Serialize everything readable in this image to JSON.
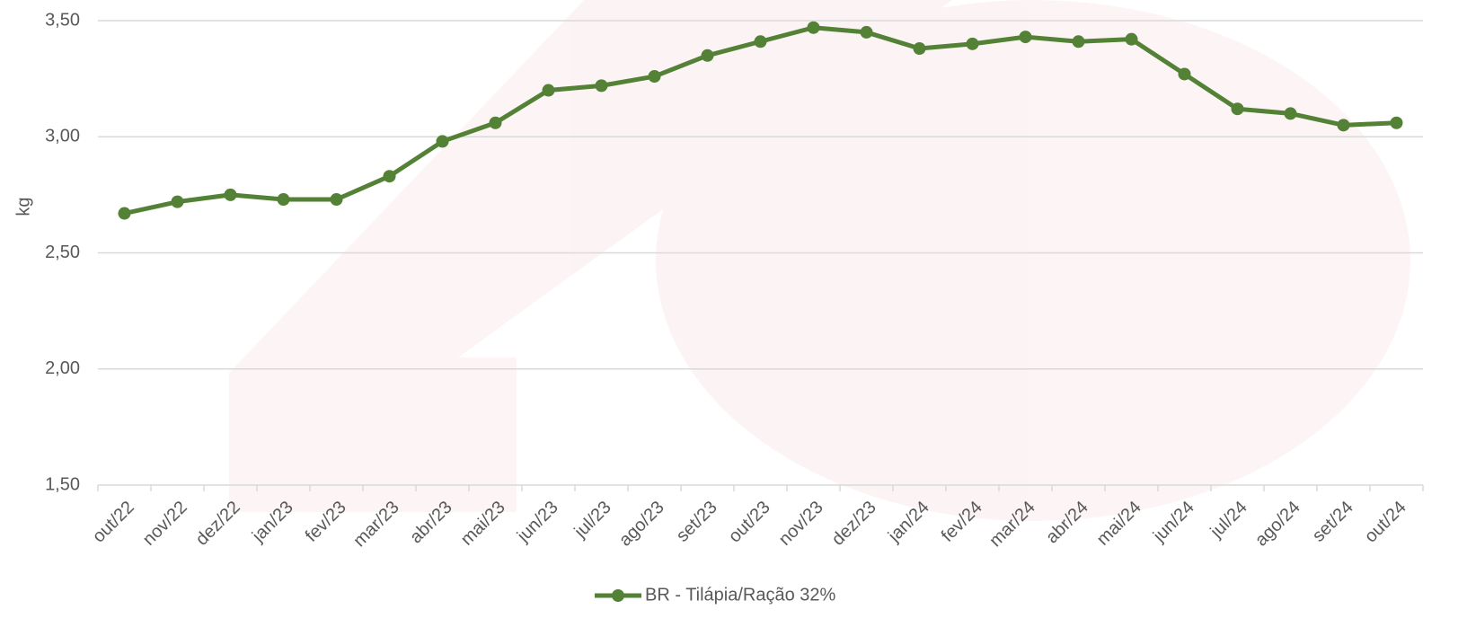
{
  "chart_data": {
    "type": "line",
    "y_label": "kg",
    "categories": [
      "out/22",
      "nov/22",
      "dez/22",
      "jan/23",
      "fev/23",
      "mar/23",
      "abr/23",
      "mai/23",
      "jun/23",
      "jul/23",
      "ago/23",
      "set/23",
      "out/23",
      "nov/23",
      "dez/23",
      "jan/24",
      "fev/24",
      "mar/24",
      "abr/24",
      "mai/24",
      "jun/24",
      "jul/24",
      "ago/24",
      "set/24",
      "out/24"
    ],
    "series": [
      {
        "name": "BR - Tilápia/Ração 32%",
        "color": "#538135",
        "values": [
          2.67,
          2.72,
          2.75,
          2.73,
          2.73,
          2.83,
          2.98,
          3.06,
          3.2,
          3.22,
          3.26,
          3.35,
          3.41,
          3.47,
          3.45,
          3.38,
          3.4,
          3.43,
          3.41,
          3.42,
          3.27,
          3.12,
          3.1,
          3.05,
          3.06
        ]
      }
    ],
    "ylim": [
      1.5,
      3.5
    ],
    "yticks": [
      {
        "value": 1.5,
        "label": "1,50"
      },
      {
        "value": 2,
        "label": "2,00"
      },
      {
        "value": 2.5,
        "label": "2,50"
      },
      {
        "value": 3,
        "label": "3,00"
      },
      {
        "value": 3.5,
        "label": "3,50"
      }
    ],
    "grid": true,
    "legend": "bottom"
  }
}
